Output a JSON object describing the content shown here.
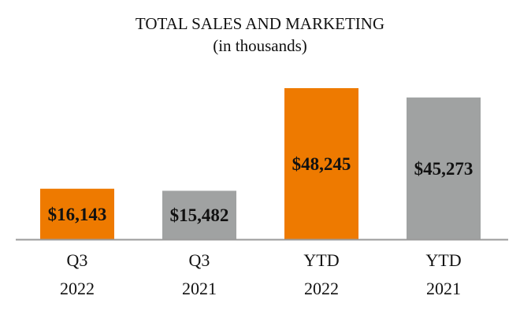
{
  "chart_data": {
    "type": "bar",
    "title": "TOTAL SALES AND MARKETING",
    "subtitle": "(in thousands)",
    "categories": [
      [
        "Q3",
        "2022"
      ],
      [
        "Q3",
        "2021"
      ],
      [
        "YTD",
        "2022"
      ],
      [
        "YTD",
        "2021"
      ]
    ],
    "values": [
      16143,
      15482,
      48245,
      45273
    ],
    "data_labels": [
      "$16,143",
      "$15,482",
      "$48,245",
      "$45,273"
    ],
    "colors": [
      "#EE7A00",
      "#A0A2A2",
      "#EE7A00",
      "#A0A2A2"
    ],
    "axis_color": "#9A9A9A",
    "grid": false,
    "legend": "none"
  }
}
